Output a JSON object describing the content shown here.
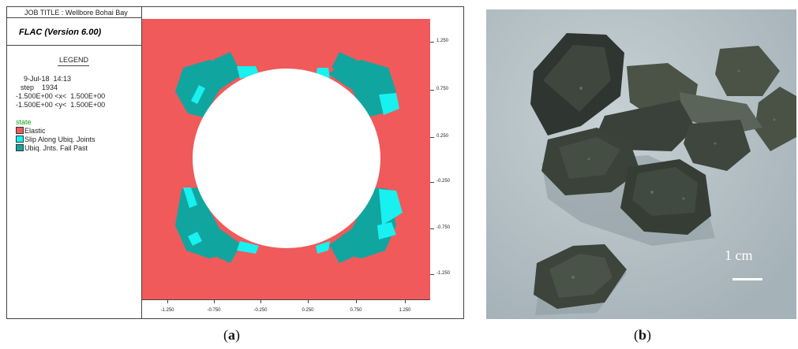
{
  "panel_a": {
    "job_title": "JOB TITLE : Wellbore Bohai Bay",
    "program": "FLAC (Version 6.00)",
    "legend_title": "LEGEND",
    "date_time": "9-Jul-18  14:13",
    "step": "step    1934",
    "x_range": "-1.500E+00 <x<  1.500E+00",
    "y_range": "-1.500E+00 <y<  1.500E+00",
    "state_label": "state",
    "legend_items": [
      {
        "label": "Elastic",
        "color": "#f05a5a"
      },
      {
        "label": "Slip Along Ubiq. Joints",
        "color": "#19f0f0"
      },
      {
        "label": "Ubiq. Jnts. Fail Past",
        "color": "#11a5a0"
      }
    ],
    "y_ticks": [
      "1.250",
      "0.750",
      "0.250",
      "-0.250",
      "-0.750",
      "-1.250"
    ],
    "x_ticks": [
      "-1.250",
      "-0.750",
      "-0.250",
      "0.250",
      "0.750",
      "1.250"
    ]
  },
  "panel_b": {
    "scale_label": "1 cm"
  },
  "captions": {
    "a_open": "(",
    "a_letter": "a",
    "a_close": ")",
    "b_open": "(",
    "b_letter": "b",
    "b_close": ")"
  },
  "colors": {
    "elastic": "#f05a5a",
    "slip": "#19f0f0",
    "fail": "#11a5a0",
    "photo_bg": "#b7c3c8",
    "rock": "#3b4238"
  }
}
